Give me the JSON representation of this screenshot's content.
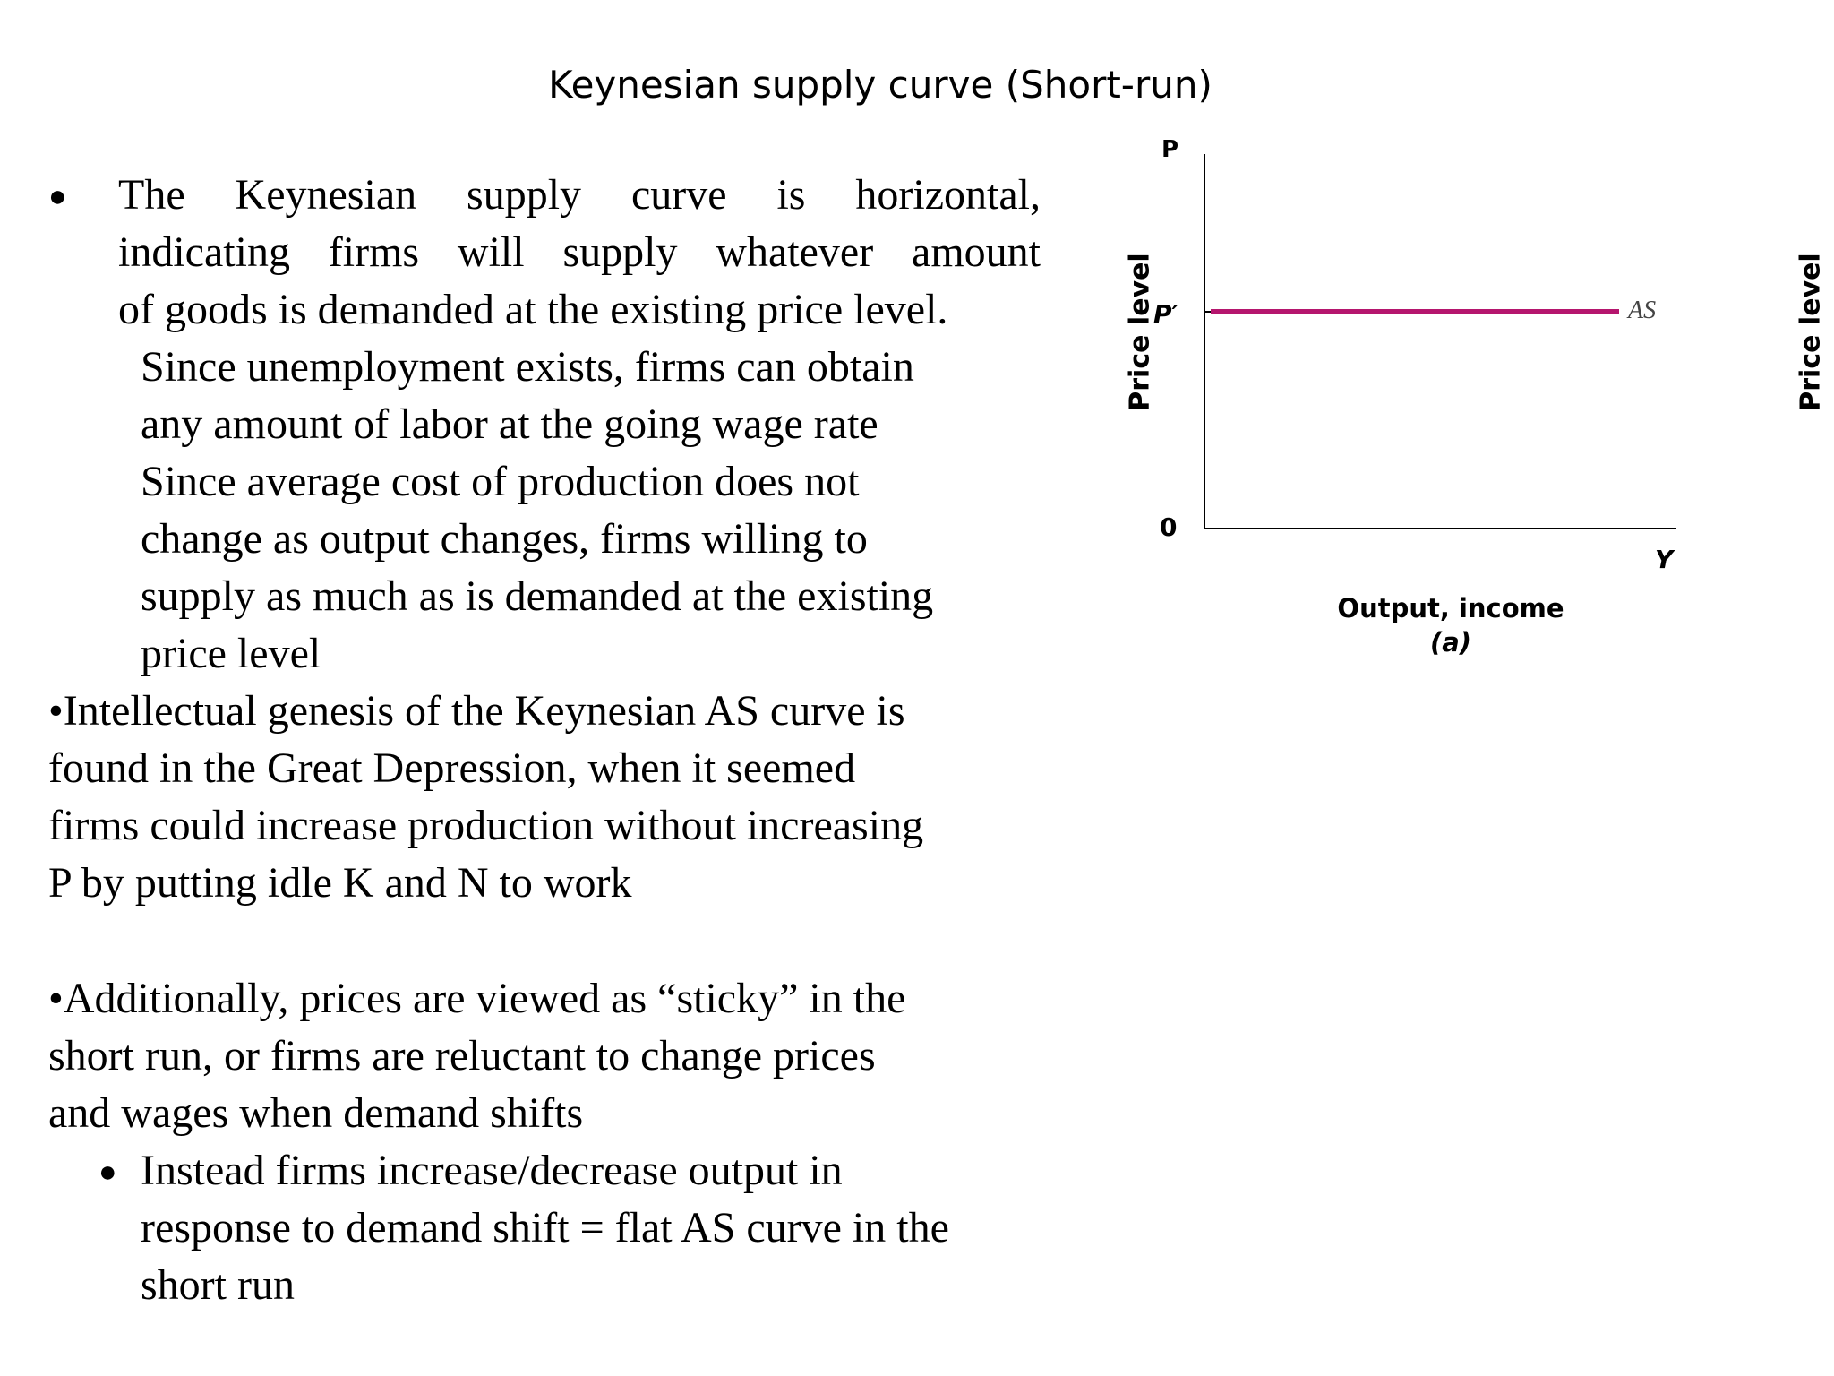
{
  "title": "Keynesian supply curve (Short-run)",
  "bullet1": {
    "justified_lines": [
      "The Keynesian supply curve is horizontal,",
      "indicating firms will supply whatever amount"
    ],
    "last_line": "of goods is demanded at the existing price level.",
    "sub_lines": [
      "Since unemployment exists, firms can obtain",
      "any amount of labor at the going wage rate",
      "Since average cost of production does not",
      "change as output changes, firms willing to",
      "supply as much as is demanded at the existing",
      "price level"
    ]
  },
  "bullet2": {
    "lines": [
      "•Intellectual genesis of the Keynesian AS curve is",
      "found in the Great Depression, when it seemed",
      "firms could increase production without increasing",
      "P by putting idle K and N to work"
    ]
  },
  "bullet3": {
    "lines": [
      "•Additionally, prices are viewed as “sticky” in the",
      "short run, or firms are reluctant to change prices",
      "and wages when demand shifts"
    ],
    "sub_bullet_lines": [
      "Instead firms increase/decrease output in",
      "response to demand shift = flat AS curve in the",
      "short run"
    ]
  },
  "chart": {
    "y_axis_label": "Price level",
    "y_axis_label_right": "Price level",
    "y_axis_top_mark": "P",
    "price_tick": "P′",
    "origin": "0",
    "x_axis_end": "Y",
    "x_axis_label": "Output, income",
    "panel_label": "(a)",
    "curve_label": "AS",
    "curve_color": "#b5166e"
  },
  "chart_data": {
    "type": "line",
    "series": [
      {
        "name": "AS",
        "x": [
          "0",
          "Y"
        ],
        "y": [
          "P′",
          "P′"
        ]
      }
    ],
    "xlabel": "Output, income",
    "ylabel": "Price level",
    "grid": false
  }
}
